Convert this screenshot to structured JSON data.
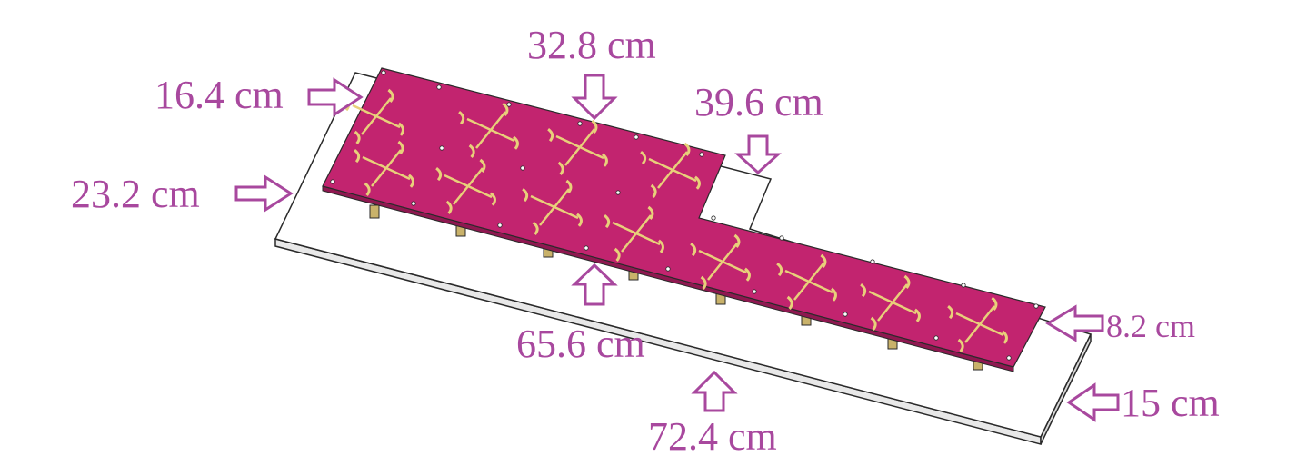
{
  "colors": {
    "label": "#a8489e",
    "arrow": "#a8489e",
    "radiator": "#c2246f",
    "ground_plane": "#ffffff",
    "outline": "#2a2a2a",
    "element": "#e8d07a",
    "connector": "#c9b26a"
  },
  "dimensions": {
    "top_width": "32.8 cm",
    "top_depth": "16.4 cm",
    "ground_step_width": "39.6 cm",
    "ground_depth": "23.2 cm",
    "radiator_length": "65.6 cm",
    "ground_length": "72.4 cm",
    "narrow_radiator_depth": "8.2 cm",
    "narrow_ground_depth": "15 cm"
  },
  "array": {
    "elements_upper_section": 8,
    "elements_lower_strip": 4
  },
  "icons": [
    "arrow-down-icon",
    "arrow-right-icon",
    "arrow-up-icon",
    "arrow-left-icon",
    "cross-dipole-icon"
  ]
}
